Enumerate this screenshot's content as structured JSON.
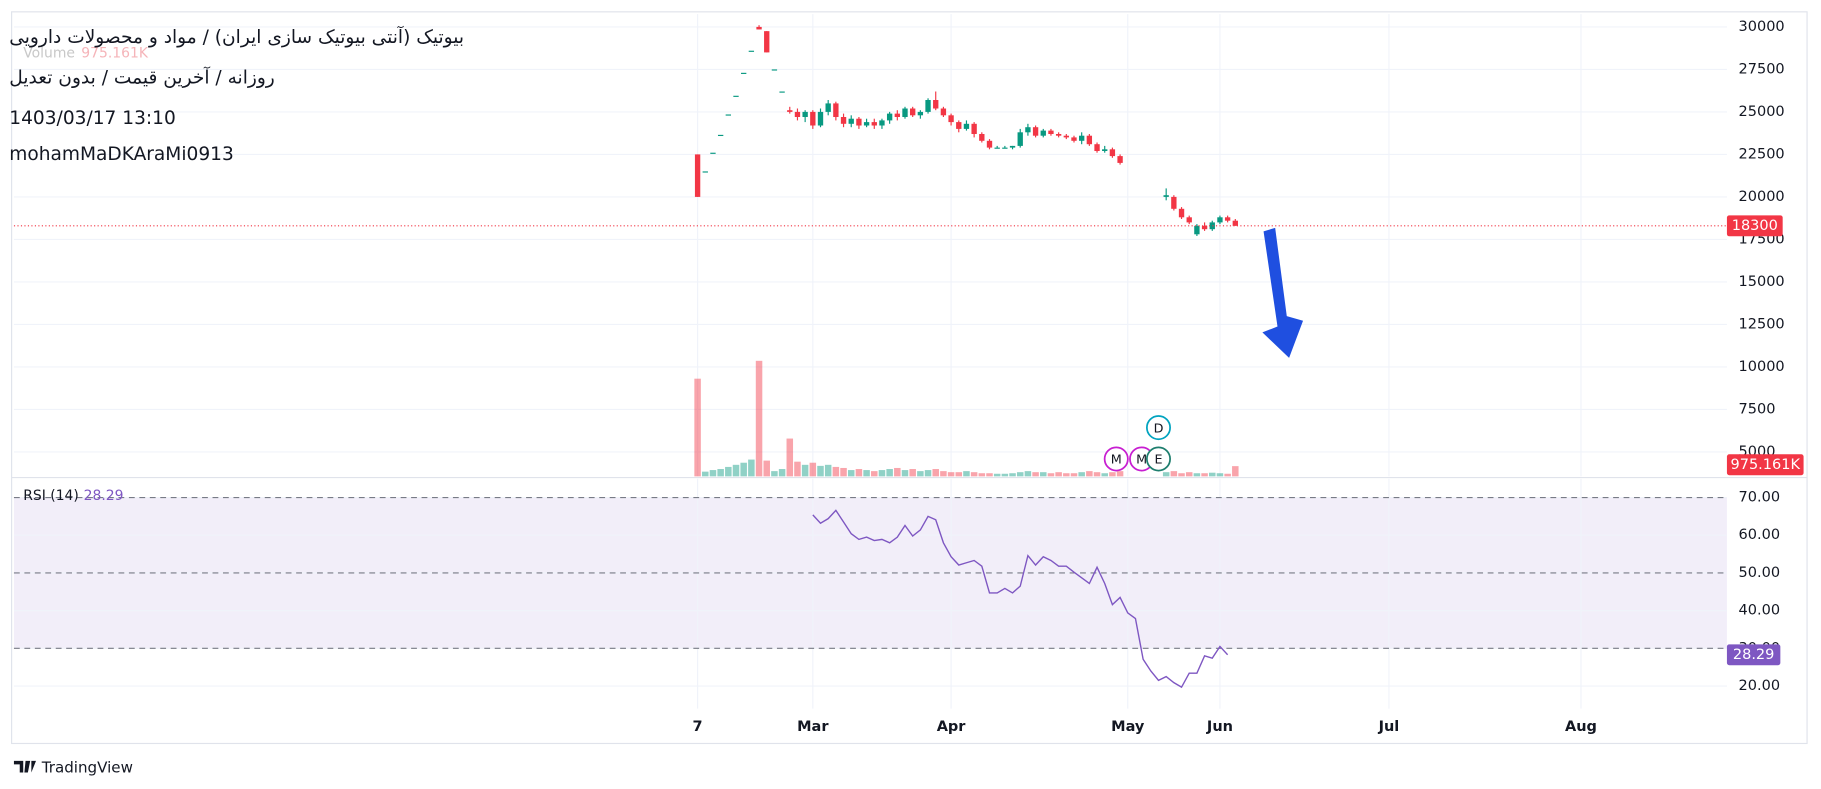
{
  "chart_data": {
    "type": "candlestick",
    "title": "بیوتیک (آنتی بیوتیک سازی ایران) / مواد و محصولات دارویی",
    "subtitle": "روزانه / آخرین قیمت / بدون تعدیل",
    "date": "1403/03/17 13:10",
    "author": "mohamMaDKAraMi0913",
    "logo_text": "TradingView",
    "x": [
      0,
      1,
      2,
      3,
      4,
      5,
      6,
      7,
      8,
      9,
      10,
      11,
      12,
      13,
      14,
      15,
      16,
      17,
      18,
      19,
      20,
      21,
      22,
      23,
      24,
      25,
      26,
      27,
      28,
      29,
      30,
      31,
      32,
      33,
      34,
      35,
      36,
      37,
      38,
      39,
      40,
      41,
      42,
      43,
      44,
      45,
      46,
      47,
      48,
      49,
      50,
      51,
      52,
      53,
      54,
      55,
      61,
      62,
      63,
      64,
      65,
      66,
      67,
      68,
      69,
      70
    ],
    "open": [
      22500,
      21500,
      22600,
      23650,
      24850,
      25950,
      27300,
      28600,
      30000,
      29750,
      27500,
      26200,
      25100,
      25000,
      24700,
      25000,
      24200,
      25000,
      25500,
      24700,
      24300,
      24600,
      24200,
      24400,
      24200,
      24500,
      24900,
      24700,
      25200,
      24800,
      25000,
      25700,
      25200,
      24800,
      24400,
      24000,
      24300,
      23700,
      23300,
      22900,
      22900,
      22900,
      23000,
      23800,
      24100,
      23600,
      23900,
      23700,
      23600,
      23500,
      23300,
      23600,
      23100,
      22700,
      22800,
      22400,
      20000,
      20000,
      19300,
      18800,
      17800,
      18300,
      18100,
      18500,
      18800,
      18600
    ],
    "high": [
      22500,
      21500,
      22600,
      23650,
      24850,
      25950,
      27300,
      28600,
      30100,
      29750,
      27500,
      26200,
      25300,
      25200,
      25100,
      25100,
      25200,
      25700,
      25600,
      24900,
      24800,
      24700,
      24600,
      24600,
      24600,
      25000,
      25100,
      25300,
      25300,
      25100,
      25800,
      26200,
      25300,
      24900,
      24500,
      24500,
      24400,
      23800,
      23400,
      23000,
      23000,
      23000,
      24000,
      24300,
      24200,
      24000,
      24000,
      23800,
      23700,
      23600,
      23800,
      23700,
      23200,
      23000,
      22900,
      22500,
      20500,
      20100,
      19400,
      18900,
      18400,
      18500,
      18600,
      18900,
      18900,
      18700
    ],
    "low": [
      20000,
      21500,
      22600,
      23650,
      24850,
      25950,
      27300,
      28600,
      29850,
      28500,
      27500,
      26200,
      24900,
      24500,
      24400,
      24000,
      24100,
      24800,
      24500,
      24100,
      24100,
      24000,
      24100,
      24000,
      24000,
      24300,
      24500,
      24600,
      24700,
      24600,
      24900,
      25100,
      24700,
      24200,
      23800,
      23900,
      23500,
      23200,
      22800,
      22850,
      22850,
      22800,
      22900,
      23600,
      23500,
      23500,
      23600,
      23500,
      23400,
      23200,
      23100,
      23000,
      22600,
      22600,
      22300,
      21900,
      19800,
      19200,
      18700,
      18400,
      17700,
      18000,
      18000,
      18400,
      18500,
      18300
    ],
    "close": [
      20000,
      21500,
      22600,
      23650,
      24850,
      25950,
      27300,
      28600,
      29850,
      28500,
      27500,
      26200,
      25000,
      24700,
      25000,
      24200,
      25000,
      25500,
      24700,
      24300,
      24600,
      24200,
      24400,
      24200,
      24500,
      24900,
      24700,
      25200,
      24800,
      25000,
      25700,
      25200,
      24800,
      24400,
      24000,
      24300,
      23700,
      23300,
      22900,
      22900,
      22900,
      23000,
      23800,
      24100,
      23600,
      23900,
      23700,
      23600,
      23500,
      23300,
      23600,
      23100,
      22700,
      22800,
      22400,
      22000,
      20100,
      19300,
      18800,
      18500,
      18300,
      18100,
      18500,
      18800,
      18600,
      18300
    ],
    "up_color": "#089981",
    "down_color": "#f23645",
    "xlim": [
      -89,
      134
    ],
    "xticks": [
      {
        "value": 0,
        "label": "7"
      },
      {
        "value": 15,
        "label": "Mar"
      },
      {
        "value": 33,
        "label": "Apr"
      },
      {
        "value": 56,
        "label": "May"
      },
      {
        "value": 68,
        "label": "Jun"
      },
      {
        "value": 90,
        "label": "Jul"
      },
      {
        "value": 115,
        "label": "Aug"
      }
    ],
    "ylim": [
      3560,
      30750
    ],
    "yticks": [
      5000,
      7500,
      10000,
      12500,
      15000,
      17500,
      20000,
      22500,
      25000,
      27500,
      30000
    ],
    "grid": true,
    "last_price": 18300,
    "volume": {
      "name": "Volume",
      "ylim": [
        0,
        44000
      ],
      "last_label": "975.161K",
      "values": [
        9300,
        450,
        600,
        700,
        900,
        1100,
        1300,
        1600,
        11000,
        1500,
        500,
        700,
        3600,
        1400,
        1100,
        1300,
        1000,
        1100,
        900,
        800,
        600,
        700,
        600,
        500,
        600,
        700,
        800,
        600,
        700,
        500,
        600,
        700,
        500,
        400,
        400,
        500,
        400,
        300,
        300,
        250,
        250,
        300,
        400,
        500,
        400,
        400,
        300,
        400,
        300,
        300,
        400,
        500,
        400,
        300,
        400,
        500,
        400,
        500,
        300,
        400,
        300,
        300,
        350,
        300,
        250,
        975.161
      ]
    },
    "rsi": {
      "name": "RSI (14)",
      "color": "#7e57c2",
      "x": [
        15,
        16,
        17,
        18,
        19,
        20,
        21,
        22,
        23,
        24,
        25,
        26,
        27,
        28,
        29,
        30,
        31,
        32,
        33,
        34,
        35,
        36,
        37,
        38,
        39,
        40,
        41,
        42,
        43,
        44,
        45,
        46,
        47,
        48,
        49,
        50,
        51,
        52,
        53,
        54,
        55,
        56,
        57,
        58,
        59,
        60,
        61,
        62,
        63,
        64,
        65,
        66,
        67,
        68,
        69
      ],
      "values": [
        65.4,
        63.2,
        64.4,
        66.6,
        63.5,
        60.4,
        58.9,
        59.5,
        58.6,
        58.9,
        58,
        59.5,
        62.6,
        59.8,
        61.4,
        65,
        64.1,
        58,
        54.3,
        52.1,
        52.7,
        53.3,
        51.8,
        44.7,
        44.7,
        45.9,
        44.7,
        46.5,
        54.6,
        52.1,
        54.3,
        53.3,
        51.8,
        51.8,
        50.2,
        48.7,
        47.2,
        51.5,
        47.2,
        41.6,
        43.5,
        39.4,
        37.9,
        27.1,
        24,
        21.5,
        22.5,
        20.9,
        19.7,
        23.4,
        23.4,
        28,
        27.4,
        30.5,
        28.29
      ],
      "ylim": [
        14,
        75
      ],
      "yticks": [
        {
          "value": 20,
          "label": "20.00"
        },
        {
          "value": 30,
          "label": "30.00"
        },
        {
          "value": 40,
          "label": "40.00"
        },
        {
          "value": 50,
          "label": "50.00"
        },
        {
          "value": 60,
          "label": "60.00"
        },
        {
          "value": 70,
          "label": "70.00"
        }
      ],
      "band": [
        30,
        70
      ],
      "levels": [
        30,
        50,
        70
      ]
    },
    "events": [
      {
        "label": "M",
        "x": 54.5,
        "color": "#c71ed1"
      },
      {
        "label": "M",
        "x": 57.8,
        "color": "#c71ed1"
      },
      {
        "label": "E",
        "x": 60,
        "color": "#1e7e6e"
      },
      {
        "label": "D",
        "x": 60,
        "color": "#00a3bf"
      }
    ]
  }
}
